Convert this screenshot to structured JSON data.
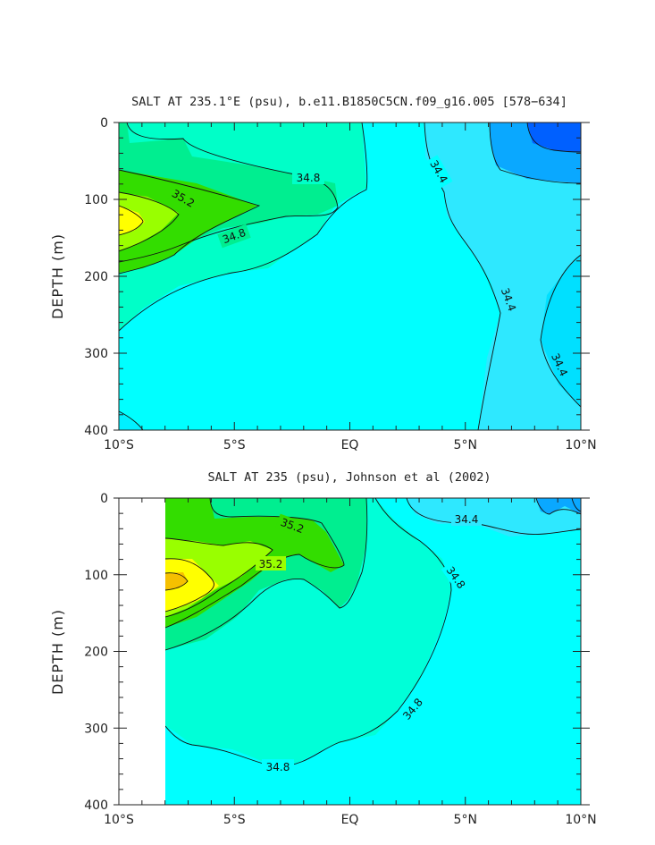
{
  "chart_data": [
    {
      "type": "contour",
      "title": "SALT AT 235.1°E (psu), b.e11.B1850C5CN.f09_g16.005 [578−634]",
      "ylabel": "DEPTH (m)",
      "xlabel": "",
      "xlim": [
        "10°S",
        "10°N"
      ],
      "ylim": [
        400,
        0
      ],
      "x_ticks": [
        "10°S",
        "5°S",
        "EQ",
        "5°N",
        "10°N"
      ],
      "y_ticks": [
        "0",
        "100",
        "200",
        "300",
        "400"
      ],
      "contour_labels": [
        "34.8",
        "35.2",
        "34.8",
        "34.4",
        "34.4",
        "34.4"
      ],
      "fill_colors": {
        "lowest": "#0060ff",
        "low": "#0aa8ff",
        "mid_low": "#2ee8ff",
        "base": "#00ffff",
        "mid": "#00ffc8",
        "mid_high": "#00ee90",
        "high": "#33dd00",
        "higher": "#99ff00",
        "highest": "#ffff00",
        "peak": "#f5c000"
      }
    },
    {
      "type": "contour",
      "title": "SALT AT 235 (psu), Johnson et al (2002)",
      "ylabel": "DEPTH (m)",
      "xlabel": "",
      "xlim": [
        "10°S",
        "10°N"
      ],
      "ylim": [
        400,
        0
      ],
      "x_ticks": [
        "10°S",
        "5°S",
        "EQ",
        "5°N",
        "10°N"
      ],
      "y_ticks": [
        "0",
        "100",
        "200",
        "300",
        "400"
      ],
      "contour_labels": [
        "35.2",
        "35.2",
        "34.4",
        "34.8",
        "34.8",
        "34.8"
      ]
    }
  ]
}
